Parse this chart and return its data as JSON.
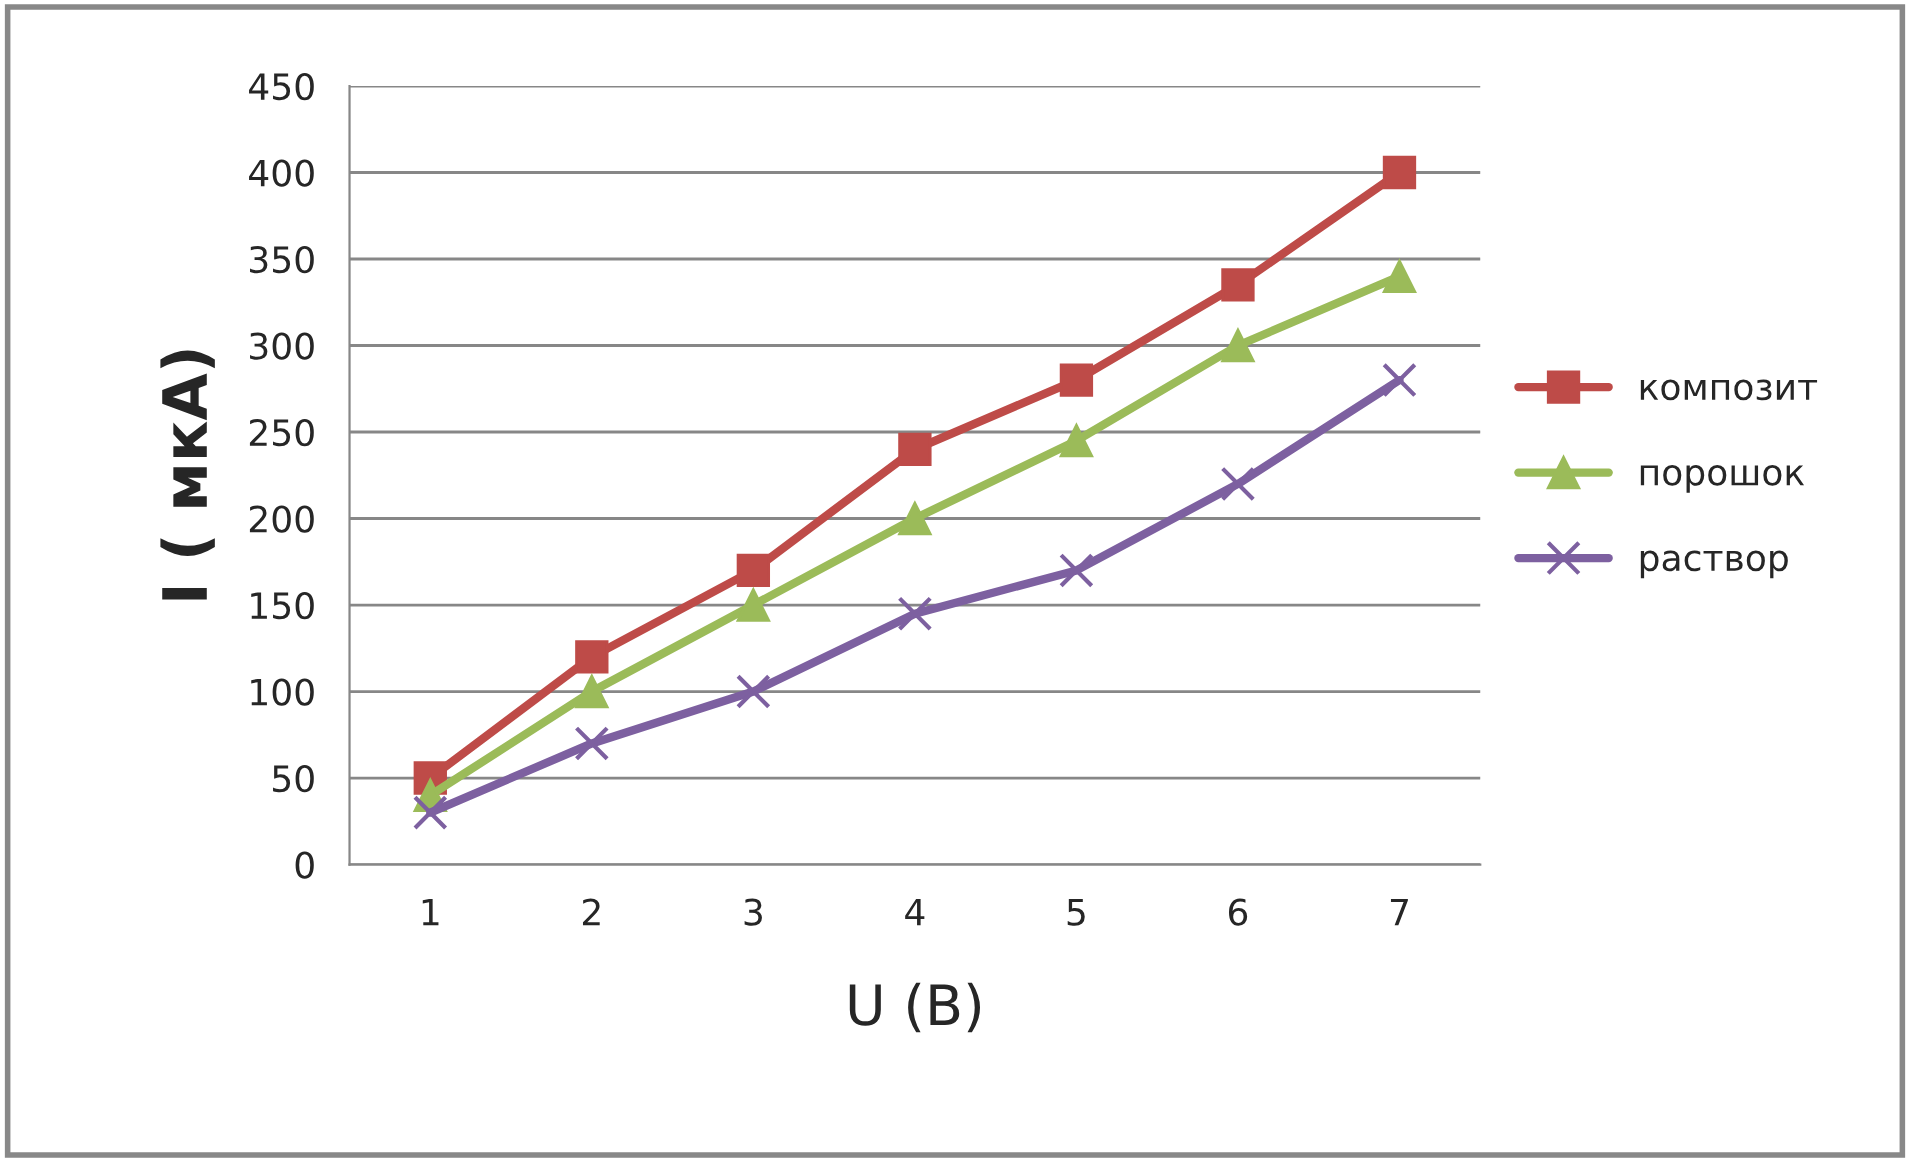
{
  "chart_data": {
    "type": "line",
    "xlabel": "U (В)",
    "ylabel": "I ( мкА)",
    "categories": [
      "1",
      "2",
      "3",
      "4",
      "5",
      "6",
      "7"
    ],
    "series": [
      {
        "name": "композит",
        "color": "#be4b48",
        "marker": "square",
        "values": [
          50,
          120,
          170,
          240,
          280,
          335,
          400
        ]
      },
      {
        "name": "порошок",
        "color": "#9bbb59",
        "marker": "triangle",
        "values": [
          40,
          100,
          150,
          200,
          245,
          300,
          340
        ]
      },
      {
        "name": "раствор",
        "color": "#7d60a0",
        "marker": "cross",
        "values": [
          30,
          70,
          100,
          145,
          170,
          220,
          280
        ]
      }
    ],
    "ylim": [
      0,
      450
    ],
    "yticks": [
      0,
      50,
      100,
      150,
      200,
      250,
      300,
      350,
      400,
      450
    ],
    "grid": "y",
    "legend": "right"
  }
}
